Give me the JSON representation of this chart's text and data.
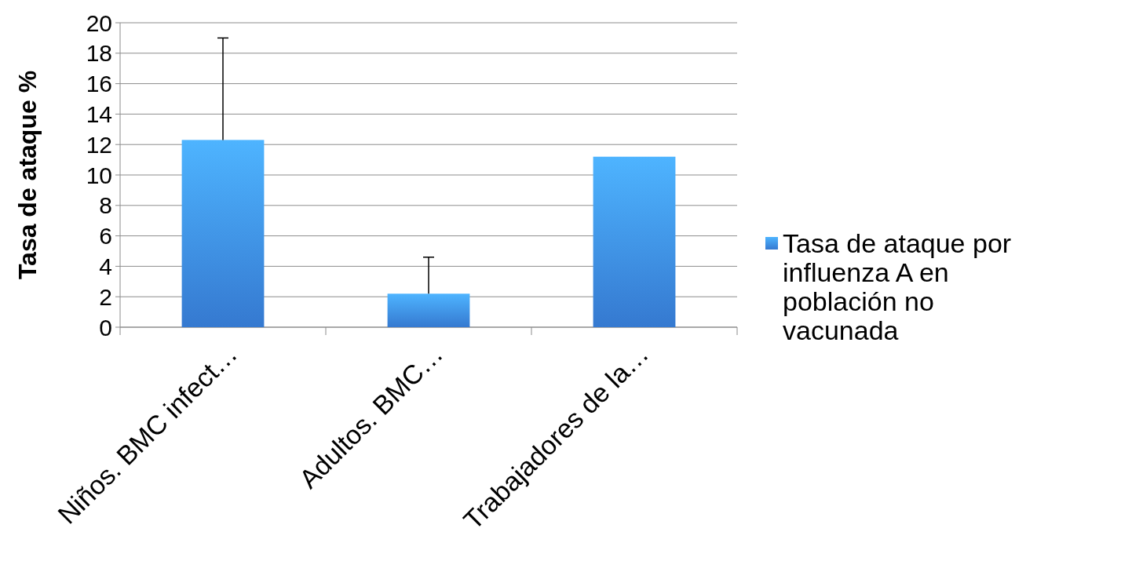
{
  "chart_data": {
    "type": "bar",
    "ylabel": "Tasa de ataque %",
    "categories": [
      "Niños. BMC infect…",
      "Adultos. BMC…",
      "Trabajadores de la…"
    ],
    "series": [
      {
        "name": "Tasa de ataque por influenza A en población no vacunada",
        "color": "#3d8cf0",
        "values": [
          12.3,
          2.2,
          11.2
        ],
        "errors": [
          [
            12.3,
            19.0
          ],
          [
            2.2,
            4.6
          ],
          null
        ]
      }
    ],
    "ylim": [
      0,
      20
    ],
    "yticks": [
      0,
      2,
      4,
      6,
      8,
      10,
      12,
      14,
      16,
      18,
      20
    ],
    "grid": "y",
    "legend": "right"
  }
}
